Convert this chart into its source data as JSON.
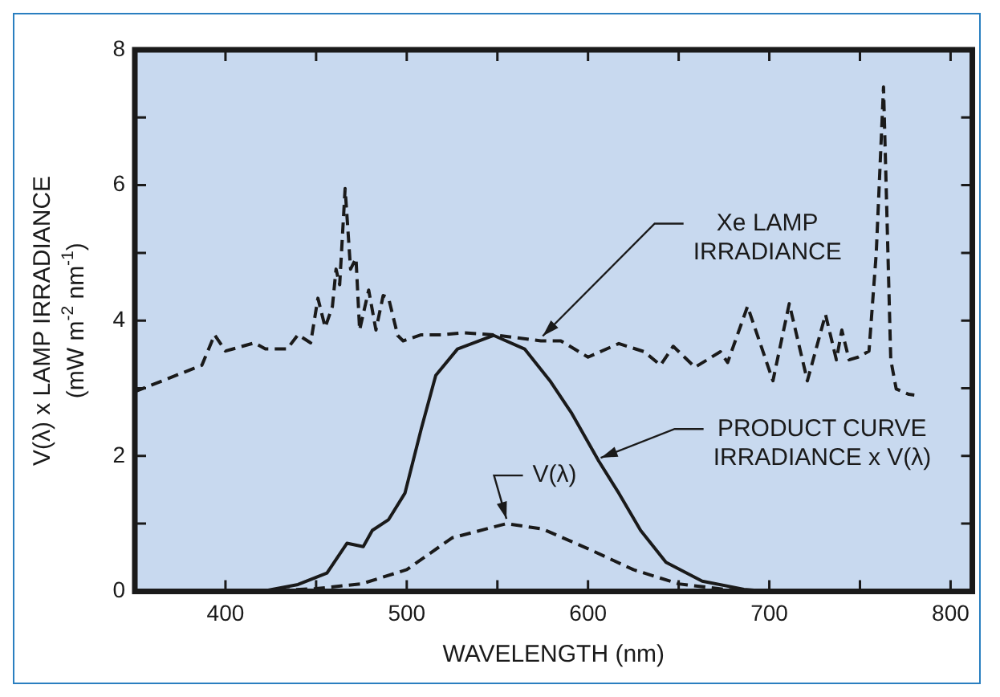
{
  "chart_data": {
    "type": "line",
    "xlabel": "WAVELENGTH (nm)",
    "ylabel": "V(λ) x LAMP IRRADIANCE (mW m$^{-2}$ nm$^{-1}$)",
    "xlim": [
      350,
      812
    ],
    "ylim": [
      0,
      8
    ],
    "xticks": [
      400,
      {
        "value": 450,
        "label": null
      },
      500,
      {
        "value": 550,
        "label": null
      },
      600,
      {
        "value": 650,
        "label": null
      },
      700,
      {
        "value": 750,
        "label": null
      },
      800
    ],
    "yticks": [
      0,
      {
        "value": 1,
        "label": null
      },
      2,
      {
        "value": 3,
        "label": null
      },
      4,
      {
        "value": 5,
        "label": null
      },
      6,
      {
        "value": 7,
        "label": null
      },
      8
    ],
    "grid": false,
    "legend": false,
    "marker": "none",
    "series": [
      {
        "color": "#1a1a1a",
        "line_style": "dashed",
        "x": [
          350,
          387,
          394,
          400,
          416,
          422,
          434,
          440,
          447,
          451,
          455,
          459,
          461,
          463,
          466,
          469,
          472,
          474,
          479,
          483,
          487,
          490,
          495,
          498,
          508,
          519,
          531,
          548,
          574,
          585,
          600,
          617,
          631,
          640,
          647,
          659,
          673,
          677,
          688,
          702,
          711,
          721,
          731,
          737,
          740,
          744,
          749,
          755,
          759,
          763,
          767,
          770,
          777,
          780
        ],
        "values": [
          2.95,
          3.34,
          3.79,
          3.55,
          3.67,
          3.58,
          3.58,
          3.79,
          3.67,
          4.33,
          3.9,
          4.21,
          4.76,
          4.53,
          5.95,
          4.76,
          4.92,
          3.86,
          4.45,
          3.86,
          4.37,
          4.33,
          3.78,
          3.7,
          3.79,
          3.79,
          3.82,
          3.79,
          3.7,
          3.7,
          3.46,
          3.66,
          3.54,
          3.34,
          3.62,
          3.31,
          3.54,
          3.38,
          4.21,
          3.11,
          4.25,
          3.11,
          4.09,
          3.42,
          3.86,
          3.42,
          3.46,
          3.55,
          5.0,
          7.45,
          3.42,
          2.99,
          2.91,
          2.9
        ]
      },
      {
        "color": "#1a1a1a",
        "line_style": "solid",
        "x": [
          420,
          440,
          456,
          467,
          476,
          481,
          490,
          499,
          508,
          516,
          528,
          548,
          565,
          579,
          591,
          606,
          617,
          629,
          643,
          663,
          686,
          700
        ],
        "values": [
          0,
          0.1,
          0.27,
          0.71,
          0.66,
          0.9,
          1.06,
          1.45,
          2.4,
          3.19,
          3.58,
          3.78,
          3.58,
          3.11,
          2.63,
          1.92,
          1.45,
          0.9,
          0.43,
          0.15,
          0.03,
          0
        ]
      },
      {
        "color": "#1a1a1a",
        "line_style": "dashed",
        "x": [
          400,
          425,
          450,
          475,
          500,
          525,
          555,
          575,
          600,
          625,
          650,
          675,
          700
        ],
        "values": [
          0,
          0.01,
          0.04,
          0.11,
          0.32,
          0.79,
          1.0,
          0.92,
          0.63,
          0.32,
          0.11,
          0.03,
          0
        ]
      }
    ],
    "annotations": [
      {
        "text": "Xe LAMP IRRADIANCE",
        "x": 575,
        "y": 3.7
      },
      {
        "text": "PRODUCT CURVE IRRADIANCE x V(λ)",
        "x": 607,
        "y": 1.9
      },
      {
        "text": "V(λ)",
        "x": 555,
        "y": 1.0
      }
    ]
  }
}
